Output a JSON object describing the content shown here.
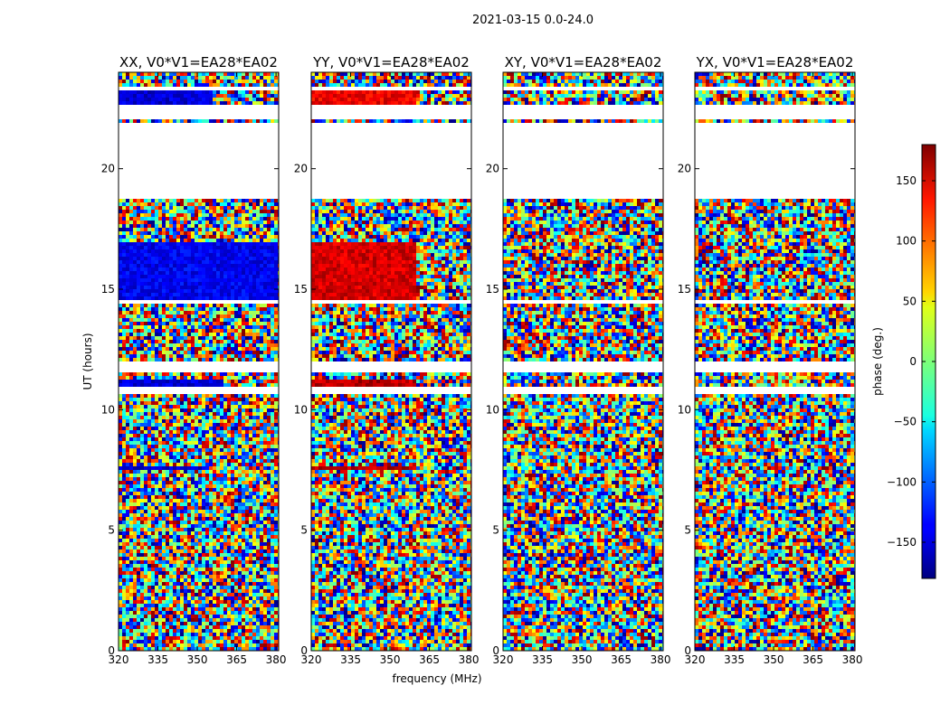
{
  "chart_data": {
    "type": "heatmap",
    "title": "2021-03-15 0.0-24.0",
    "xlabel": "frequency (MHz)",
    "ylabel": "UT (hours)",
    "xlim": [
      320,
      381
    ],
    "ylim": [
      0,
      24
    ],
    "xticks": [
      320,
      335,
      350,
      365,
      380
    ],
    "yticks": [
      0,
      5,
      10,
      15,
      20
    ],
    "panels": [
      {
        "title": "XX, V0*V1=EA28*EA02",
        "stokes": "XX"
      },
      {
        "title": "YY, V0*V1=EA28*EA02",
        "stokes": "YY"
      },
      {
        "title": "XY, V0*V1=EA28*EA02",
        "stokes": "XY"
      },
      {
        "title": "YX, V0*V1=EA28*EA02",
        "stokes": "YX"
      }
    ],
    "colorbar": {
      "label": "phase (deg.)",
      "range": [
        -180,
        180
      ],
      "ticks": [
        -150,
        -100,
        -50,
        0,
        50,
        100,
        150
      ],
      "colormap": "jet"
    },
    "flagged_ut_ranges": [
      [
        18.8,
        21.9
      ],
      [
        22.05,
        22.6
      ],
      [
        11.6,
        12.0
      ],
      [
        10.6,
        11.0
      ],
      [
        14.4,
        14.6
      ],
      [
        23.3,
        23.45
      ]
    ],
    "coherent_regions": [
      {
        "panel": "XX",
        "ut": [
          22.55,
          23.3
        ],
        "freq": [
          320,
          356
        ],
        "phase": -150
      },
      {
        "panel": "YY",
        "ut": [
          22.55,
          23.3
        ],
        "freq": [
          320,
          360
        ],
        "phase": 140
      },
      {
        "panel": "XX",
        "ut": [
          14.6,
          17.0
        ],
        "freq": [
          320,
          381
        ],
        "phase": -140
      },
      {
        "panel": "YY",
        "ut": [
          14.6,
          17.0
        ],
        "freq": [
          320,
          360
        ],
        "phase": 150
      },
      {
        "panel": "XX",
        "ut": [
          11.0,
          11.3
        ],
        "freq": [
          320,
          360
        ],
        "phase": -150
      },
      {
        "panel": "YY",
        "ut": [
          11.0,
          11.3
        ],
        "freq": [
          320,
          360
        ],
        "phase": 160
      },
      {
        "panel": "XX",
        "ut": [
          7.5,
          7.7
        ],
        "freq": [
          320,
          355
        ],
        "phase": -150
      },
      {
        "panel": "YY",
        "ut": [
          7.5,
          7.7
        ],
        "freq": [
          320,
          360
        ],
        "phase": 160
      }
    ]
  }
}
